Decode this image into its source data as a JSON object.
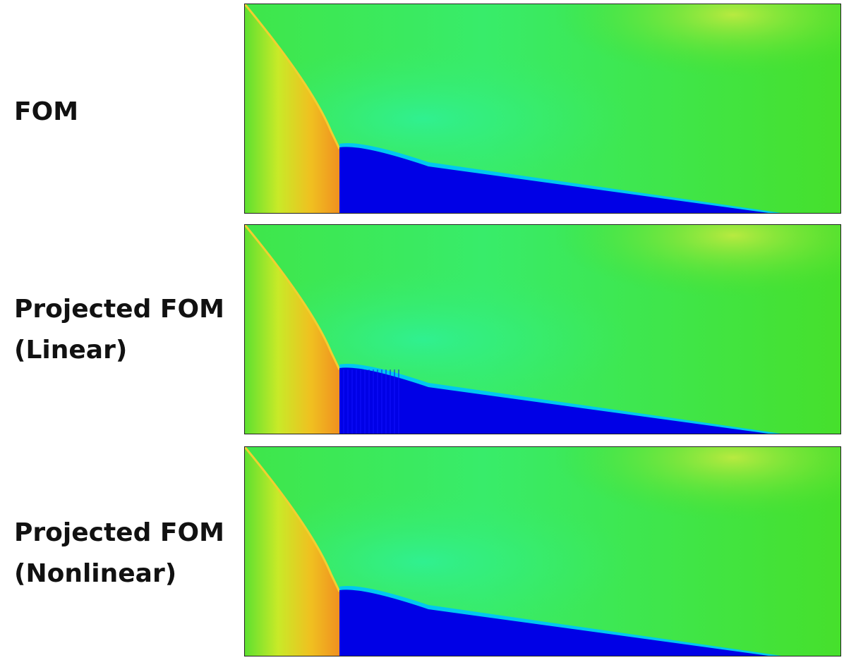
{
  "panels": [
    {
      "label": [
        "FOM"
      ]
    },
    {
      "label": [
        "Projected FOM",
        "(Linear)"
      ]
    },
    {
      "label": [
        "Projected FOM",
        "(Nonlinear)"
      ]
    }
  ]
}
